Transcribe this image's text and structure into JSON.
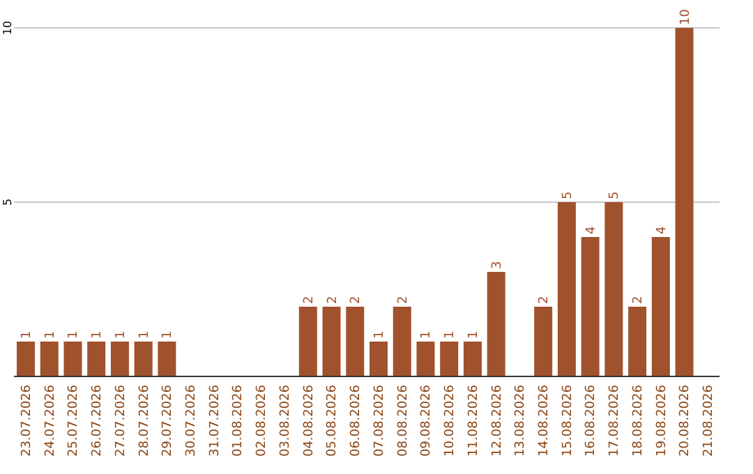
{
  "chart_data": {
    "type": "bar",
    "categories": [
      "23.07.2026",
      "24.07.2026",
      "25.07.2026",
      "26.07.2026",
      "27.07.2026",
      "28.07.2026",
      "29.07.2026",
      "30.07.2026",
      "31.07.2026",
      "01.08.2026",
      "02.08.2026",
      "03.08.2026",
      "04.08.2026",
      "05.08.2026",
      "06.08.2026",
      "07.08.2026",
      "08.08.2026",
      "09.08.2026",
      "10.08.2026",
      "11.08.2026",
      "12.08.2026",
      "13.08.2026",
      "14.08.2026",
      "15.08.2026",
      "16.08.2026",
      "17.08.2026",
      "18.08.2026",
      "19.08.2026",
      "20.08.2026",
      "21.08.2026"
    ],
    "series": [
      {
        "color": "#a0522d",
        "values": [
          1,
          1,
          1,
          1,
          1,
          1,
          1,
          null,
          null,
          null,
          null,
          null,
          2,
          2,
          2,
          1,
          2,
          1,
          1,
          1,
          3,
          null,
          2,
          5,
          4,
          5,
          2,
          4,
          10,
          null
        ]
      }
    ],
    "ylim": [
      0,
      10
    ],
    "yticks": [
      {
        "value": 0,
        "label": null
      },
      5,
      10
    ],
    "grid": "y",
    "data_labels": true
  }
}
